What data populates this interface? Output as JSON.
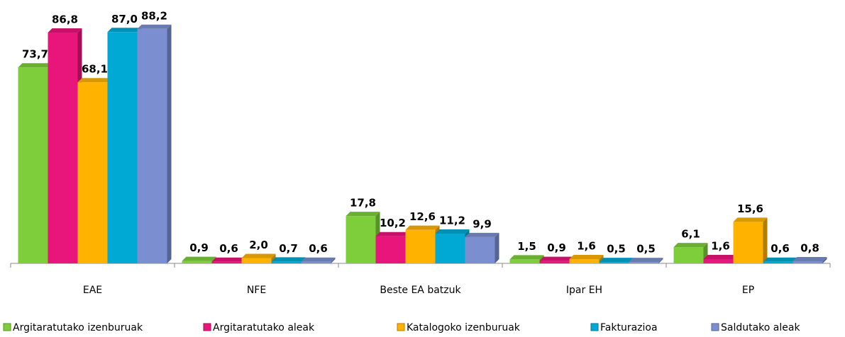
{
  "chart_data": {
    "type": "bar3d",
    "categories": [
      "EAE",
      "NFE",
      "Beste EA batzuk",
      "Ipar EH",
      "EP"
    ],
    "series": [
      {
        "name": "Argitaratutako izenburuak",
        "color": "#7dce3a",
        "values": [
          73.7,
          0.9,
          17.8,
          1.5,
          6.1
        ],
        "value_labels": [
          "73,7",
          "0,9",
          "17,8",
          "1,5",
          "6,1"
        ]
      },
      {
        "name": "Argitaratutako aleak",
        "color": "#e8157a",
        "values": [
          86.8,
          0.6,
          10.2,
          0.9,
          1.6
        ],
        "value_labels": [
          "86,8",
          "0,6",
          "10,2",
          "0,9",
          "1,6"
        ]
      },
      {
        "name": "Katalogoko izenburuak",
        "color": "#ffb300",
        "values": [
          68.1,
          2.0,
          12.6,
          1.6,
          15.6
        ],
        "value_labels": [
          "68,1",
          "2,0",
          "12,6",
          "1,6",
          "15,6"
        ]
      },
      {
        "name": "Fakturazioa",
        "color": "#00a9d4",
        "values": [
          87.0,
          0.7,
          11.2,
          0.5,
          0.6
        ],
        "value_labels": [
          "87,0",
          "0,7",
          "11,2",
          "0,5",
          "0,6"
        ]
      },
      {
        "name": "Saldutako aleak",
        "color": "#7b8fd0",
        "values": [
          88.2,
          0.6,
          9.9,
          0.5,
          0.8
        ],
        "value_labels": [
          "88,2",
          "0,6",
          "9,9",
          "0,5",
          "0,8"
        ]
      }
    ],
    "ylim": [
      0,
      90
    ]
  }
}
